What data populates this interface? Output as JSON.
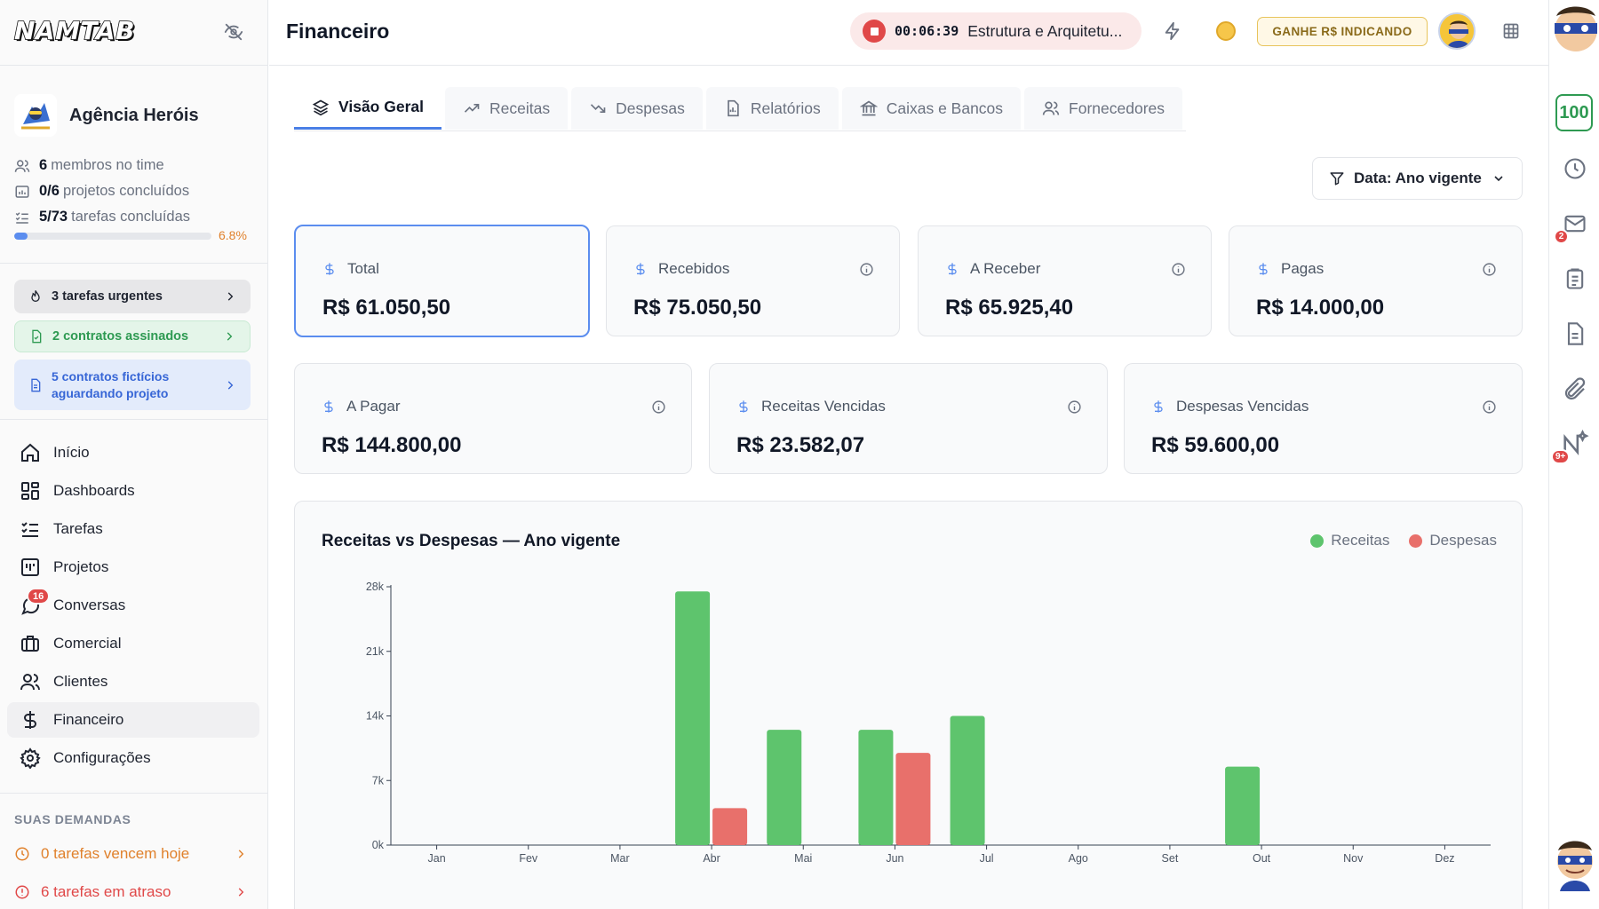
{
  "sidebar": {
    "logo": "NAMTAB",
    "agency_name": "Agência Heróis",
    "stats": [
      {
        "value": "6",
        "label": "membros no time"
      },
      {
        "value": "0/6",
        "label": "projetos concluídos"
      },
      {
        "value": "5/73",
        "label": "tarefas concluídas"
      }
    ],
    "progress_pct": "6.8%",
    "progress_fraction": 0.068,
    "alerts": {
      "urgent": "3 tarefas urgentes",
      "signed": "2 contratos assinados",
      "fictitious": "5 contratos fictícios aguardando projeto"
    },
    "nav": [
      {
        "label": "Início"
      },
      {
        "label": "Dashboards"
      },
      {
        "label": "Tarefas"
      },
      {
        "label": "Projetos"
      },
      {
        "label": "Conversas",
        "badge": "16"
      },
      {
        "label": "Comercial"
      },
      {
        "label": "Clientes"
      },
      {
        "label": "Financeiro"
      },
      {
        "label": "Configurações"
      }
    ],
    "demands_title": "SUAS DEMANDAS",
    "demands": [
      {
        "label": "0 tarefas vencem hoje"
      },
      {
        "label": "6 tarefas em atraso"
      }
    ]
  },
  "header": {
    "title": "Financeiro",
    "timer": {
      "time": "00:06:39",
      "task": "Estrutura e Arquitetu..."
    },
    "refer_label": "GANHE R$ INDICANDO"
  },
  "tabs": [
    {
      "label": "Visão Geral"
    },
    {
      "label": "Receitas"
    },
    {
      "label": "Despesas"
    },
    {
      "label": "Relatórios"
    },
    {
      "label": "Caixas e Bancos"
    },
    {
      "label": "Fornecedores"
    }
  ],
  "filter": {
    "label": "Data: Ano vigente"
  },
  "cards": [
    {
      "label": "Total",
      "value": "R$ 61.050,50"
    },
    {
      "label": "Recebidos",
      "value": "R$ 75.050,50"
    },
    {
      "label": "A Receber",
      "value": "R$ 65.925,40"
    },
    {
      "label": "Pagas",
      "value": "R$ 14.000,00"
    },
    {
      "label": "A Pagar",
      "value": "R$ 144.800,00"
    },
    {
      "label": "Receitas Vencidas",
      "value": "R$ 23.582,07"
    },
    {
      "label": "Despesas Vencidas",
      "value": "R$ 59.600,00"
    }
  ],
  "rail": {
    "score": "100",
    "mail_badge": "2",
    "notif_badge": "9+"
  },
  "colors": {
    "accent": "#4a7fe6",
    "receitas": "#5ec46d",
    "despesas": "#e8706b"
  },
  "chart_data": {
    "type": "bar",
    "title": "Receitas vs Despesas — Ano vigente",
    "categories": [
      "Jan",
      "Fev",
      "Mar",
      "Abr",
      "Mai",
      "Jun",
      "Jul",
      "Ago",
      "Set",
      "Out",
      "Nov",
      "Dez"
    ],
    "series": [
      {
        "name": "Receitas",
        "values": [
          0,
          0,
          0,
          27500,
          12500,
          12500,
          14000,
          0,
          0,
          8500,
          0,
          0
        ]
      },
      {
        "name": "Despesas",
        "values": [
          0,
          0,
          0,
          4000,
          0,
          10000,
          0,
          0,
          0,
          0,
          0,
          0
        ]
      }
    ],
    "yticks": [
      "0k",
      "7k",
      "14k",
      "21k",
      "28k"
    ],
    "ylim": [
      0,
      28000
    ],
    "legend": "top-right",
    "grid": false
  }
}
